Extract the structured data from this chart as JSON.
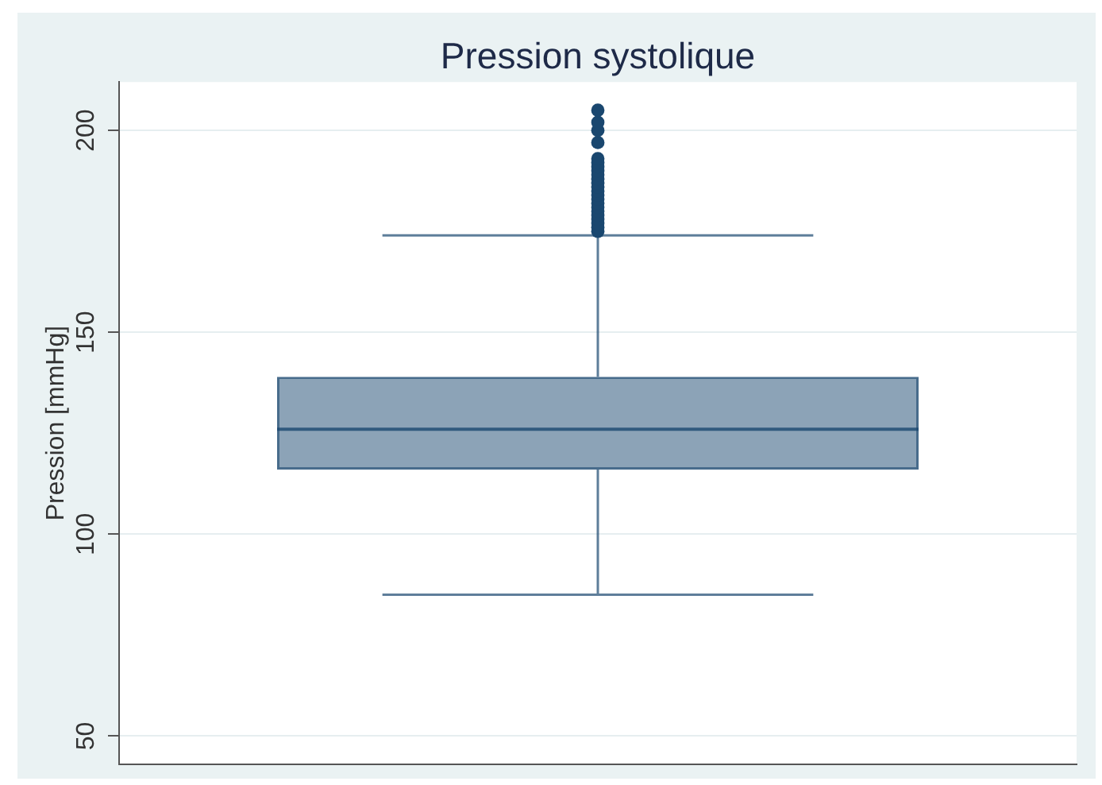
{
  "chart_data": {
    "type": "box",
    "title": "Pression systolique",
    "ylabel": "Pression [mmHg]",
    "categories": [
      null
    ],
    "color": "#1a476f",
    "boxes": [
      {
        "low": 85,
        "q1": 116,
        "median": 126,
        "q3": 139,
        "high": 174,
        "outliers": [
          175,
          176,
          177,
          178,
          179,
          180,
          181,
          182,
          183,
          184,
          185,
          186,
          187,
          188,
          189,
          190,
          191,
          192,
          193,
          197,
          200,
          202,
          205
        ]
      }
    ],
    "ylim": [
      43,
      212
    ],
    "yticks": [
      50,
      100,
      150,
      200
    ],
    "grid": "y",
    "tick_labels": "y",
    "marker": "circle"
  }
}
